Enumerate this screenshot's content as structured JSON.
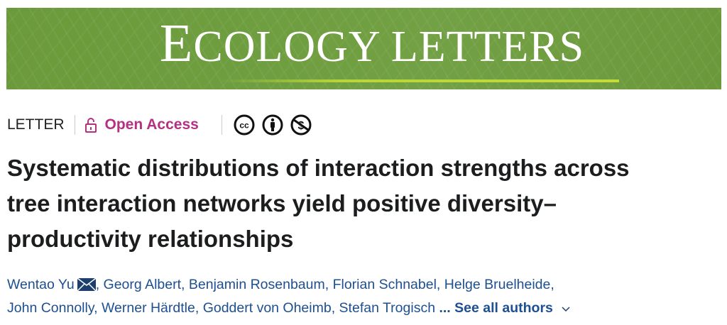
{
  "journal": {
    "name": "ECOLOGY LETTERS",
    "colors": {
      "banner": "#6b9a3b",
      "underline": "#b8d63a"
    }
  },
  "article": {
    "type": "LETTER",
    "access": {
      "label": "Open Access",
      "icon": "unlocked-padlock-icon",
      "color": "#b52f83"
    },
    "license_icons": [
      "cc-icon",
      "attribution-icon",
      "noncommercial-icon"
    ],
    "title": "Systematic distributions of interaction strengths across tree interaction networks yield positive diversity–productivity relationships",
    "authors": [
      "Wentao Yu",
      "Georg Albert",
      "Benjamin Rosenbaum",
      "Florian Schnabel",
      "Helge Bruelheide",
      "John Connolly",
      "Werner Härdtle",
      "Goddert von Oheimb",
      "Stefan Trogisch"
    ],
    "ellipsis": "...",
    "see_all": "See all authors"
  }
}
